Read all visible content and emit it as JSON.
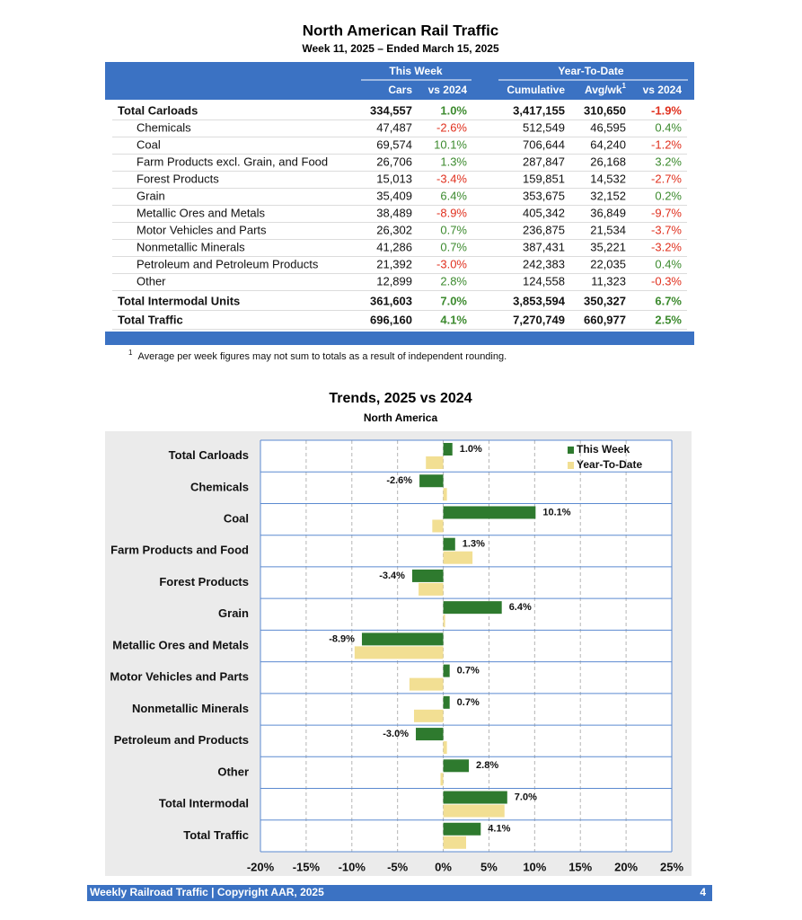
{
  "header": {
    "title": "North American Rail Traffic",
    "subtitle": "Week 11, 2025 – Ended March 15, 2025"
  },
  "table": {
    "groups": [
      "This Week",
      "Year-To-Date"
    ],
    "columns": [
      "Cars",
      "vs 2024",
      "Cumulative",
      "Avg/wk",
      "vs 2024"
    ],
    "avg_mark": "1",
    "rows": [
      {
        "label": "Total Carloads",
        "total": true,
        "cells": [
          "334,557",
          "1.0%",
          "3,417,155",
          "310,650",
          "-1.9%"
        ]
      },
      {
        "label": "Chemicals",
        "total": false,
        "cells": [
          "47,487",
          "-2.6%",
          "512,549",
          "46,595",
          "0.4%"
        ]
      },
      {
        "label": "Coal",
        "total": false,
        "cells": [
          "69,574",
          "10.1%",
          "706,644",
          "64,240",
          "-1.2%"
        ]
      },
      {
        "label": "Farm Products excl. Grain, and Food",
        "total": false,
        "cells": [
          "26,706",
          "1.3%",
          "287,847",
          "26,168",
          "3.2%"
        ]
      },
      {
        "label": "Forest Products",
        "total": false,
        "cells": [
          "15,013",
          "-3.4%",
          "159,851",
          "14,532",
          "-2.7%"
        ]
      },
      {
        "label": "Grain",
        "total": false,
        "cells": [
          "35,409",
          "6.4%",
          "353,675",
          "32,152",
          "0.2%"
        ]
      },
      {
        "label": "Metallic Ores and Metals",
        "total": false,
        "cells": [
          "38,489",
          "-8.9%",
          "405,342",
          "36,849",
          "-9.7%"
        ]
      },
      {
        "label": "Motor Vehicles and Parts",
        "total": false,
        "cells": [
          "26,302",
          "0.7%",
          "236,875",
          "21,534",
          "-3.7%"
        ]
      },
      {
        "label": "Nonmetallic Minerals",
        "total": false,
        "cells": [
          "41,286",
          "0.7%",
          "387,431",
          "35,221",
          "-3.2%"
        ]
      },
      {
        "label": "Petroleum and Petroleum Products",
        "total": false,
        "cells": [
          "21,392",
          "-3.0%",
          "242,383",
          "22,035",
          "0.4%"
        ]
      },
      {
        "label": "Other",
        "total": false,
        "cells": [
          "12,899",
          "2.8%",
          "124,558",
          "11,323",
          "-0.3%"
        ]
      },
      {
        "label": "Total Intermodal Units",
        "total": true,
        "cells": [
          "361,603",
          "7.0%",
          "3,853,594",
          "350,327",
          "6.7%"
        ]
      },
      {
        "label": "Total Traffic",
        "total": true,
        "cells": [
          "696,160",
          "4.1%",
          "7,270,749",
          "660,977",
          "2.5%"
        ]
      }
    ]
  },
  "footnote": {
    "mark": "1",
    "text": "Average per week figures may not sum to totals as a result of independent rounding."
  },
  "chart_data": {
    "type": "hbar",
    "title": "Trends, 2025 vs 2024",
    "subtitle": "North America",
    "categories": [
      "Total Carloads",
      "Chemicals",
      "Coal",
      "Farm Products and Food",
      "Forest Products",
      "Grain",
      "Metallic Ores and Metals",
      "Motor Vehicles and Parts",
      "Nonmetallic Minerals",
      "Petroleum and Products",
      "Other",
      "Total Intermodal",
      "Total Traffic"
    ],
    "series": [
      {
        "name": "This Week",
        "color": "#2e7a2e",
        "values": [
          1.0,
          -2.6,
          10.1,
          1.3,
          -3.4,
          6.4,
          -8.9,
          0.7,
          0.7,
          -3.0,
          2.8,
          7.0,
          4.1
        ],
        "value_labels": [
          "1.0%",
          "-2.6%",
          "10.1%",
          "1.3%",
          "-3.4%",
          "6.4%",
          "-8.9%",
          "0.7%",
          "0.7%",
          "-3.0%",
          "2.8%",
          "7.0%",
          "4.1%"
        ]
      },
      {
        "name": "Year-To-Date",
        "color": "#f2df93",
        "values": [
          -1.9,
          0.4,
          -1.2,
          3.2,
          -2.7,
          0.2,
          -9.7,
          -3.7,
          -3.2,
          0.4,
          -0.3,
          6.7,
          2.5
        ]
      }
    ],
    "xlim": [
      -20,
      25
    ],
    "xticks": [
      {
        "value": -20,
        "label": "-20%"
      },
      {
        "value": -15,
        "label": "-15%"
      },
      {
        "value": -10,
        "label": "-10%"
      },
      {
        "value": -5,
        "label": "-5%"
      },
      {
        "value": 0,
        "label": "0%"
      },
      {
        "value": 5,
        "label": "5%"
      },
      {
        "value": 10,
        "label": "10%"
      },
      {
        "value": 15,
        "label": "15%"
      },
      {
        "value": 20,
        "label": "20%"
      },
      {
        "value": 25,
        "label": "25%"
      }
    ],
    "grid": true,
    "legend": "top-right"
  },
  "footer": {
    "text": "Weekly Railroad Traffic | Copyright AAR, 2025",
    "page": "4"
  }
}
